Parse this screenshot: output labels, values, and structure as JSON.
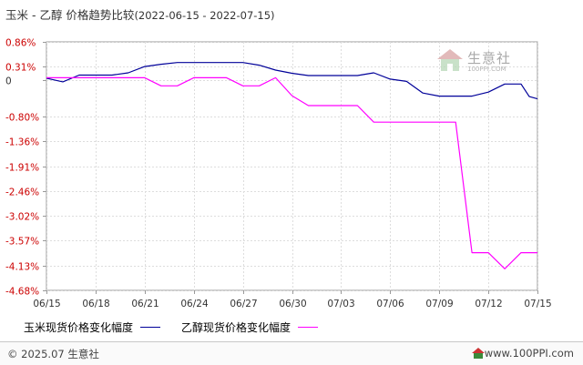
{
  "title": {
    "text": "玉米 - 乙醇  价格趋势比较",
    "date_range": "(2022-06-15 - 2022-07-15)"
  },
  "watermark": {
    "name": "生意社",
    "url": "100PPI.COM"
  },
  "footer": {
    "copyright": "© 2025.07 生意社",
    "url": "www.100PPI.com",
    "logo_icon": "house-logo-icon"
  },
  "colors": {
    "series_1": "#000099",
    "series_2": "#ff00ff",
    "axis": "#999999",
    "grid": "#dddddd",
    "negative_tick": "#cc0000",
    "positive_tick": "#cc0000",
    "zero_tick": "#333333"
  },
  "chart_data": {
    "type": "line",
    "y_ticks": [
      "0.86%",
      "0.31%",
      "0",
      "-0.80%",
      "-1.36%",
      "-1.91%",
      "-2.46%",
      "-3.02%",
      "-3.57%",
      "-4.13%",
      "-4.68%"
    ],
    "y_tick_values": [
      0.86,
      0.31,
      0,
      -0.8,
      -1.36,
      -1.91,
      -2.46,
      -3.02,
      -3.57,
      -4.13,
      -4.68
    ],
    "ylim": [
      -4.68,
      0.86
    ],
    "x_ticks": [
      "06/15",
      "06/18",
      "06/21",
      "06/24",
      "06/27",
      "06/30",
      "07/03",
      "07/06",
      "07/09",
      "07/12",
      "07/15"
    ],
    "x_days": 30,
    "grid": true,
    "legend_position": "bottom",
    "series": [
      {
        "name": "玉米现货价格变化幅度",
        "points": [
          [
            0,
            0.05
          ],
          [
            1,
            -0.03
          ],
          [
            2,
            0.12
          ],
          [
            3,
            0.12
          ],
          [
            4,
            0.12
          ],
          [
            5,
            0.17
          ],
          [
            6,
            0.31
          ],
          [
            7,
            0.36
          ],
          [
            8,
            0.4
          ],
          [
            9,
            0.4
          ],
          [
            10,
            0.4
          ],
          [
            11,
            0.4
          ],
          [
            12,
            0.4
          ],
          [
            13,
            0.34
          ],
          [
            14,
            0.23
          ],
          [
            15,
            0.16
          ],
          [
            16,
            0.11
          ],
          [
            17,
            0.11
          ],
          [
            18,
            0.11
          ],
          [
            19,
            0.11
          ],
          [
            20,
            0.17
          ],
          [
            21,
            0.03
          ],
          [
            22,
            -0.02
          ],
          [
            23,
            -0.28
          ],
          [
            24,
            -0.35
          ],
          [
            25,
            -0.35
          ],
          [
            26,
            -0.35
          ],
          [
            27,
            -0.26
          ],
          [
            28,
            -0.08
          ],
          [
            29,
            -0.08
          ],
          [
            29.5,
            -0.36
          ],
          [
            30,
            -0.41
          ]
        ]
      },
      {
        "name": "乙醇现货价格变化幅度",
        "points": [
          [
            0,
            0.06
          ],
          [
            1,
            0.06
          ],
          [
            2,
            0.06
          ],
          [
            3,
            0.06
          ],
          [
            4,
            0.06
          ],
          [
            5,
            0.06
          ],
          [
            6,
            0.06
          ],
          [
            7,
            -0.12
          ],
          [
            8,
            -0.12
          ],
          [
            9,
            0.06
          ],
          [
            10,
            0.06
          ],
          [
            11,
            0.06
          ],
          [
            12,
            -0.12
          ],
          [
            13,
            -0.12
          ],
          [
            14,
            0.06
          ],
          [
            15,
            -0.34
          ],
          [
            16,
            -0.56
          ],
          [
            17,
            -0.56
          ],
          [
            18,
            -0.56
          ],
          [
            19,
            -0.56
          ],
          [
            20,
            -0.93
          ],
          [
            21,
            -0.93
          ],
          [
            22,
            -0.93
          ],
          [
            23,
            -0.93
          ],
          [
            24,
            -0.93
          ],
          [
            25,
            -0.93
          ],
          [
            26,
            -3.84
          ],
          [
            27,
            -3.84
          ],
          [
            28,
            -4.2
          ],
          [
            29,
            -3.84
          ],
          [
            30,
            -3.84
          ]
        ]
      }
    ]
  }
}
